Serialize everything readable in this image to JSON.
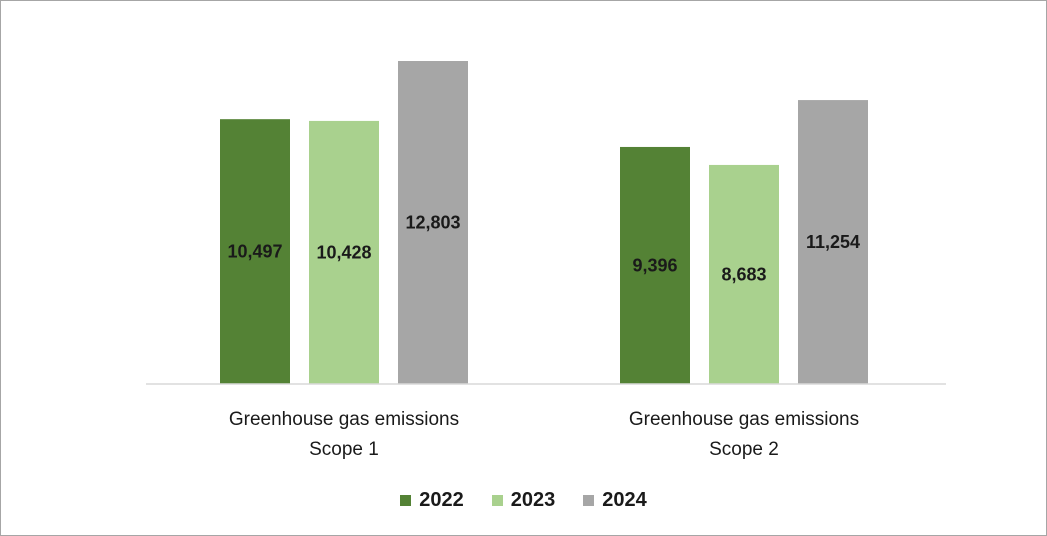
{
  "chart_data": {
    "type": "bar",
    "categories": [
      [
        "Greenhouse gas emissions",
        "Scope 1"
      ],
      [
        "Greenhouse gas emissions",
        "Scope 2"
      ]
    ],
    "series": [
      {
        "name": "2022",
        "color": "#548235",
        "values": [
          10497,
          9396
        ],
        "labels": [
          "10,497",
          "9,396"
        ]
      },
      {
        "name": "2023",
        "color": "#a9d18e",
        "values": [
          10428,
          8683
        ],
        "labels": [
          "10,428",
          "8,683"
        ]
      },
      {
        "name": "2024",
        "color": "#a6a6a6",
        "values": [
          12803,
          11254
        ],
        "labels": [
          "12,803",
          "11,254"
        ]
      }
    ],
    "ylim": [
      0,
      13000
    ],
    "grid": false,
    "legend_position": "bottom"
  }
}
